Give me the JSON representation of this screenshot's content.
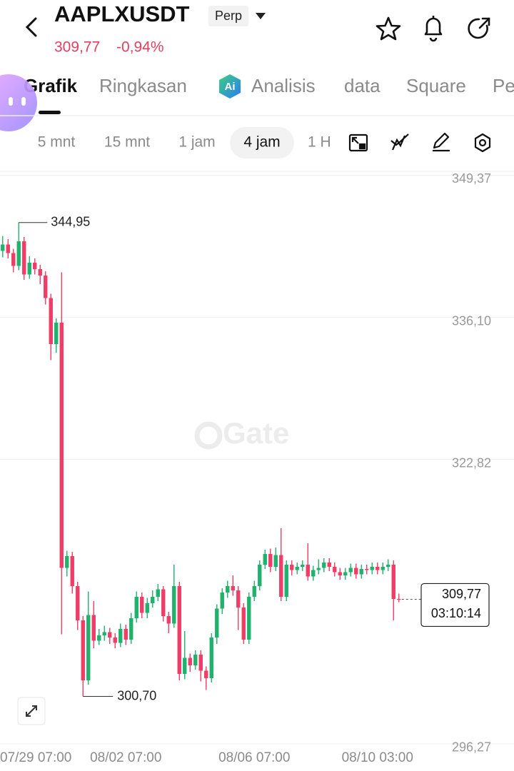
{
  "header": {
    "symbol": "AAPLXUSDT",
    "badge": "Perp",
    "price": "309,77",
    "change": "-0,94%"
  },
  "tabs": [
    "Grafik",
    "Ringkasan",
    "Analisis",
    "data",
    "Square",
    "Pe"
  ],
  "intervals": [
    "5 mnt",
    "15 mnt",
    "1 jam",
    "4 jam",
    "1 H"
  ],
  "watermark": "Gate",
  "chart_data": {
    "type": "candlestick",
    "up_color": "#20b26c",
    "down_color": "#ef3d67",
    "open": [
      342.3,
      342.9,
      342.1,
      340.9,
      343.2,
      340.1,
      341.2,
      340.6,
      340.0,
      337.9,
      333.6,
      335.6,
      312.7,
      313.8,
      311.0,
      307.8,
      302.2,
      308.3,
      305.9,
      306.4,
      306.7,
      306.2,
      305.7,
      307.0,
      306.0,
      308.0,
      310.0,
      308.5,
      309.4,
      310.0,
      310.7,
      308.2,
      307.5,
      311.0,
      302.8,
      304.3,
      303.6,
      304.6,
      303.1,
      302.4,
      306.2,
      308.9,
      310.4,
      311.0,
      310.6,
      309.0,
      306.0,
      310.0,
      311.0,
      313.0,
      314.0,
      312.8,
      313.9,
      310.0,
      313.0,
      312.5,
      312.8,
      313.0,
      311.9,
      312.5,
      312.7,
      313.2,
      312.8,
      312.3,
      312.0,
      312.3,
      312.7,
      312.1,
      312.6,
      312.5,
      312.8,
      312.5,
      312.8,
      313.0,
      309.8
    ],
    "high": [
      343.7,
      343.4,
      342.5,
      344.95,
      343.6,
      341.8,
      341.6,
      341.0,
      340.4,
      338.3,
      336.0,
      340.3,
      314.3,
      314.2,
      311.4,
      308.2,
      310.5,
      309.6,
      307.0,
      307.3,
      307.1,
      306.6,
      307.5,
      307.4,
      308.5,
      310.5,
      310.4,
      309.9,
      310.6,
      311.2,
      311.0,
      308.6,
      313.0,
      311.4,
      306.8,
      304.7,
      305.0,
      305.0,
      303.5,
      306.6,
      309.3,
      310.8,
      311.5,
      312.0,
      311.0,
      309.4,
      310.4,
      311.5,
      313.4,
      314.4,
      314.5,
      314.6,
      316.4,
      313.4,
      313.4,
      313.2,
      313.4,
      315.0,
      312.9,
      313.5,
      313.6,
      313.6,
      313.2,
      312.7,
      312.7,
      313.1,
      313.1,
      313.0,
      313.0,
      313.2,
      313.2,
      313.2,
      313.5,
      313.4,
      310.3
    ],
    "low": [
      341.7,
      341.6,
      340.3,
      340.5,
      339.6,
      339.7,
      340.1,
      339.2,
      337.3,
      332.1,
      332.8,
      306.5,
      311.9,
      310.3,
      306.9,
      300.7,
      301.8,
      305.2,
      305.5,
      305.9,
      305.6,
      305.2,
      305.3,
      305.5,
      305.6,
      307.6,
      308.0,
      308.0,
      309.0,
      309.6,
      307.7,
      306.6,
      307.1,
      302.2,
      302.3,
      303.0,
      303.2,
      302.1,
      301.3,
      302.0,
      305.6,
      308.4,
      309.9,
      310.1,
      306.9,
      305.6,
      305.6,
      309.6,
      310.6,
      312.6,
      312.3,
      312.4,
      309.6,
      309.6,
      312.0,
      312.1,
      312.4,
      311.5,
      311.5,
      312.1,
      312.3,
      312.4,
      311.9,
      311.6,
      311.6,
      311.9,
      311.7,
      311.7,
      312.1,
      312.1,
      312.1,
      312.1,
      312.4,
      307.8,
      309.5
    ],
    "close": [
      342.9,
      342.1,
      340.9,
      343.2,
      340.1,
      341.2,
      340.6,
      340.0,
      337.9,
      333.6,
      335.6,
      312.7,
      313.8,
      311.0,
      307.8,
      302.2,
      308.3,
      305.9,
      306.4,
      306.7,
      306.2,
      305.7,
      307.0,
      306.0,
      308.0,
      310.0,
      308.5,
      309.4,
      310.0,
      310.7,
      308.2,
      307.5,
      311.0,
      302.8,
      304.3,
      303.6,
      304.6,
      303.1,
      302.4,
      306.2,
      308.9,
      310.4,
      311.0,
      310.6,
      309.0,
      306.0,
      310.0,
      311.0,
      313.0,
      314.0,
      312.8,
      313.9,
      310.0,
      313.0,
      312.5,
      312.8,
      313.0,
      311.9,
      312.5,
      312.7,
      313.2,
      312.8,
      312.3,
      312.0,
      312.3,
      312.7,
      312.1,
      312.6,
      312.5,
      312.8,
      312.5,
      312.8,
      313.0,
      309.8,
      309.77
    ],
    "max_label": "344,95",
    "min_label": "300,70",
    "last_label": "309,77",
    "countdown": "03:10:14",
    "ylim": [
      296,
      350
    ],
    "yticks": [
      {
        "value": 349.37,
        "label": "349,37"
      },
      {
        "value": 336.1,
        "label": "336,10"
      },
      {
        "value": 322.82,
        "label": "322,82"
      },
      {
        "value": 296.27,
        "label": "296,27"
      }
    ],
    "xlim": [
      -0.5,
      95.5
    ],
    "xticks": [
      {
        "value": -1,
        "label": "07/29 07:00"
      },
      {
        "value": 23,
        "label": "08/02 07:00"
      },
      {
        "value": 47,
        "label": "08/06 07:00"
      },
      {
        "value": 70,
        "label": "08/10 03:00"
      }
    ],
    "grid": true
  }
}
